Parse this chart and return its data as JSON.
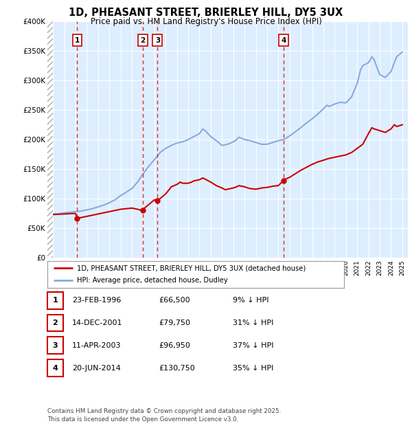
{
  "title": "1D, PHEASANT STREET, BRIERLEY HILL, DY5 3UX",
  "subtitle": "Price paid vs. HM Land Registry's House Price Index (HPI)",
  "sales": [
    {
      "label": "1",
      "date": "23-FEB-1996",
      "price": 66500,
      "year": 1996.15,
      "pct": "9% ↓ HPI"
    },
    {
      "label": "2",
      "date": "14-DEC-2001",
      "price": 79750,
      "year": 2001.96,
      "pct": "31% ↓ HPI"
    },
    {
      "label": "3",
      "date": "11-APR-2003",
      "price": 96950,
      "year": 2003.28,
      "pct": "37% ↓ HPI"
    },
    {
      "label": "4",
      "date": "20-JUN-2014",
      "price": 130750,
      "year": 2014.47,
      "pct": "35% ↓ HPI"
    }
  ],
  "legend_line1": "1D, PHEASANT STREET, BRIERLEY HILL, DY5 3UX (detached house)",
  "legend_line2": "HPI: Average price, detached house, Dudley",
  "footer": "Contains HM Land Registry data © Crown copyright and database right 2025.\nThis data is licensed under the Open Government Licence v3.0.",
  "plot_color_red": "#cc0000",
  "plot_color_blue": "#88aadd",
  "bg_color": "#ddeeff",
  "ylim": [
    0,
    400000
  ],
  "xlim_start": 1993.5,
  "xlim_end": 2025.5,
  "hpi_years": [
    1994,
    1994.5,
    1995,
    1995.5,
    1996,
    1996.5,
    1997,
    1997.5,
    1998,
    1998.5,
    1999,
    1999.5,
    2000,
    2000.5,
    2001,
    2001.5,
    2002,
    2002.5,
    2003,
    2003.3,
    2003.5,
    2004,
    2004.5,
    2005,
    2005.5,
    2006,
    2006.5,
    2007,
    2007.3,
    2007.5,
    2008,
    2008.5,
    2009,
    2009.5,
    2010,
    2010.3,
    2010.5,
    2011,
    2011.5,
    2012,
    2012.5,
    2013,
    2013.5,
    2014,
    2014.5,
    2015,
    2015.3,
    2015.5,
    2016,
    2016.3,
    2016.5,
    2017,
    2017.5,
    2018,
    2018.3,
    2018.5,
    2019,
    2019.5,
    2020,
    2020.3,
    2020.5,
    2021,
    2021.3,
    2021.5,
    2022,
    2022.3,
    2022.5,
    2023,
    2023.5,
    2024,
    2024.3,
    2024.5,
    2025
  ],
  "hpi_values": [
    74000,
    74500,
    76000,
    77000,
    78000,
    79000,
    81000,
    83000,
    86000,
    89000,
    93000,
    98000,
    105000,
    111000,
    117000,
    128000,
    142000,
    155000,
    166000,
    173000,
    178000,
    185000,
    190000,
    194000,
    196000,
    200000,
    205000,
    210000,
    218000,
    215000,
    205000,
    198000,
    190000,
    192000,
    196000,
    200000,
    204000,
    200000,
    198000,
    195000,
    192000,
    192000,
    195000,
    198000,
    200000,
    206000,
    210000,
    213000,
    220000,
    225000,
    228000,
    235000,
    243000,
    252000,
    258000,
    256000,
    260000,
    263000,
    262000,
    268000,
    272000,
    295000,
    318000,
    325000,
    330000,
    340000,
    335000,
    310000,
    305000,
    315000,
    330000,
    340000,
    348000
  ],
  "red_years": [
    1994,
    1994.5,
    1995,
    1995.5,
    1996,
    1996.15,
    1996.5,
    1997,
    1997.5,
    1998,
    1998.5,
    1999,
    1999.5,
    2000,
    2000.5,
    2001,
    2001.5,
    2001.96,
    2002,
    2002.5,
    2003,
    2003.28,
    2003.5,
    2004,
    2004.3,
    2004.5,
    2005,
    2005.3,
    2005.5,
    2006,
    2006.3,
    2006.5,
    2007,
    2007.3,
    2007.5,
    2008,
    2008.5,
    2009,
    2009.3,
    2009.5,
    2010,
    2010.3,
    2010.5,
    2011,
    2011.3,
    2011.5,
    2012,
    2012.3,
    2012.5,
    2013,
    2013.3,
    2013.5,
    2014,
    2014.47,
    2014.5,
    2015,
    2015.5,
    2016,
    2016.5,
    2017,
    2017.5,
    2018,
    2018.5,
    2019,
    2019.5,
    2020,
    2020.5,
    2021,
    2021.5,
    2022,
    2022.3,
    2022.5,
    2023,
    2023.5,
    2024,
    2024.3,
    2024.5,
    2025
  ],
  "red_values": [
    73000,
    73500,
    74000,
    74500,
    75000,
    66500,
    68000,
    70000,
    72000,
    74000,
    76000,
    78000,
    80000,
    82000,
    83000,
    84000,
    82000,
    79750,
    82000,
    90000,
    98000,
    96950,
    100000,
    108000,
    115000,
    120000,
    124000,
    128000,
    126000,
    126000,
    128000,
    130000,
    132000,
    135000,
    133000,
    128000,
    122000,
    118000,
    115000,
    116000,
    118000,
    120000,
    122000,
    120000,
    118000,
    117000,
    116000,
    117000,
    118000,
    119000,
    120000,
    121000,
    122000,
    130750,
    132000,
    136000,
    142000,
    148000,
    153000,
    158000,
    162000,
    165000,
    168000,
    170000,
    172000,
    174000,
    178000,
    185000,
    192000,
    210000,
    220000,
    218000,
    215000,
    212000,
    218000,
    225000,
    222000,
    225000
  ]
}
